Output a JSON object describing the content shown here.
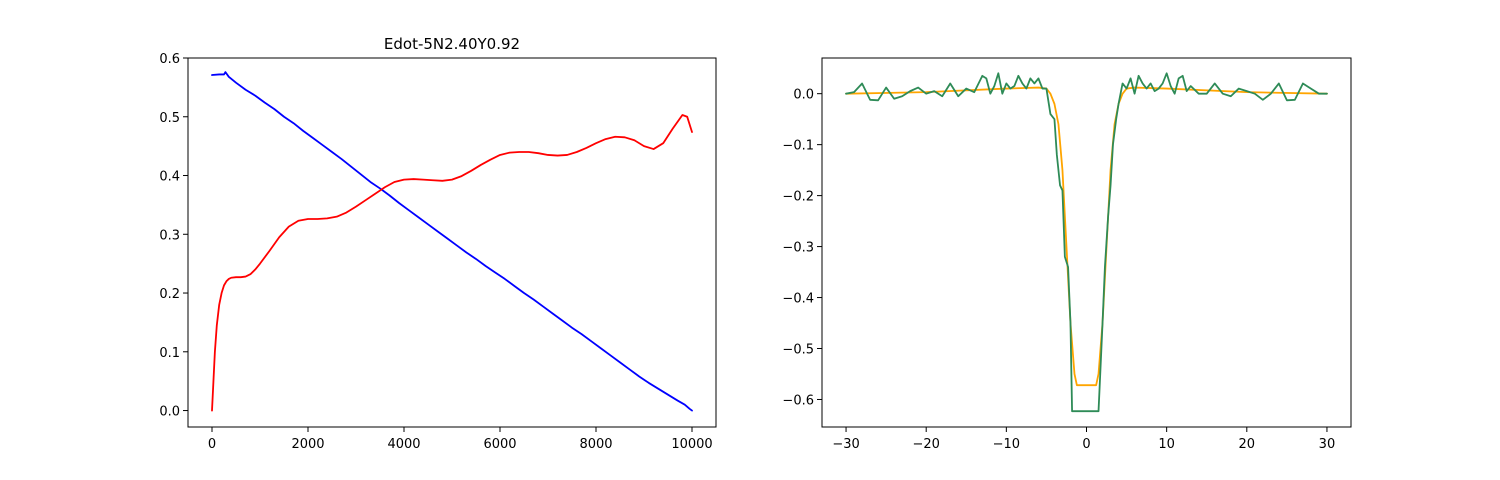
{
  "chart_data": [
    {
      "type": "line",
      "title": "Edot-5N2.40Y0.92",
      "xlabel": "",
      "ylabel": "",
      "xlim": [
        -500,
        10500
      ],
      "ylim": [
        -0.028,
        0.6
      ],
      "xticks": [
        0,
        2000,
        4000,
        6000,
        8000,
        10000
      ],
      "xtick_labels": [
        "0",
        "2000",
        "4000",
        "6000",
        "8000",
        "10000"
      ],
      "yticks": [
        0.0,
        0.1,
        0.2,
        0.3,
        0.4,
        0.5,
        0.6
      ],
      "ytick_labels": [
        "0.0",
        "0.1",
        "0.2",
        "0.3",
        "0.4",
        "0.5",
        "0.6"
      ],
      "grid": false,
      "series": [
        {
          "name": "blue",
          "color": "#0000ff",
          "x": [
            0,
            150,
            250,
            280,
            350,
            500,
            700,
            900,
            1100,
            1300,
            1500,
            1700,
            1900,
            2100,
            2300,
            2500,
            2700,
            2900,
            3100,
            3300,
            3500,
            3700,
            3900,
            4100,
            4300,
            4500,
            4700,
            4900,
            5100,
            5300,
            5500,
            5700,
            5900,
            6100,
            6300,
            6500,
            6700,
            6900,
            7100,
            7300,
            7500,
            7700,
            7900,
            8100,
            8300,
            8500,
            8700,
            8900,
            9100,
            9300,
            9500,
            9700,
            9850,
            9950,
            10000
          ],
          "y": [
            0.571,
            0.572,
            0.572,
            0.576,
            0.568,
            0.558,
            0.546,
            0.536,
            0.524,
            0.513,
            0.5,
            0.489,
            0.476,
            0.464,
            0.452,
            0.44,
            0.428,
            0.415,
            0.402,
            0.389,
            0.378,
            0.366,
            0.353,
            0.341,
            0.329,
            0.317,
            0.305,
            0.293,
            0.281,
            0.269,
            0.258,
            0.246,
            0.235,
            0.224,
            0.212,
            0.2,
            0.189,
            0.177,
            0.165,
            0.153,
            0.141,
            0.13,
            0.118,
            0.106,
            0.094,
            0.082,
            0.07,
            0.058,
            0.047,
            0.037,
            0.027,
            0.017,
            0.01,
            0.003,
            0.0
          ]
        },
        {
          "name": "red",
          "color": "#ff0000",
          "x": [
            0,
            30,
            60,
            100,
            150,
            200,
            250,
            300,
            350,
            400,
            500,
            600,
            700,
            800,
            900,
            1000,
            1200,
            1400,
            1600,
            1800,
            2000,
            2200,
            2400,
            2600,
            2800,
            3000,
            3200,
            3400,
            3600,
            3800,
            4000,
            4200,
            4400,
            4600,
            4800,
            5000,
            5200,
            5400,
            5600,
            5800,
            6000,
            6200,
            6400,
            6600,
            6800,
            7000,
            7200,
            7400,
            7600,
            7800,
            8000,
            8200,
            8400,
            8600,
            8800,
            9000,
            9200,
            9400,
            9600,
            9800,
            9900,
            10000
          ],
          "y": [
            0.0,
            0.05,
            0.1,
            0.145,
            0.18,
            0.2,
            0.213,
            0.22,
            0.224,
            0.226,
            0.227,
            0.227,
            0.228,
            0.232,
            0.24,
            0.25,
            0.272,
            0.295,
            0.313,
            0.323,
            0.326,
            0.326,
            0.327,
            0.33,
            0.337,
            0.347,
            0.358,
            0.369,
            0.38,
            0.389,
            0.393,
            0.394,
            0.393,
            0.392,
            0.391,
            0.393,
            0.399,
            0.408,
            0.418,
            0.427,
            0.435,
            0.439,
            0.44,
            0.44,
            0.438,
            0.435,
            0.434,
            0.435,
            0.44,
            0.447,
            0.455,
            0.462,
            0.466,
            0.465,
            0.46,
            0.45,
            0.445,
            0.455,
            0.48,
            0.503,
            0.5,
            0.474
          ]
        }
      ]
    },
    {
      "type": "line",
      "title": "",
      "xlabel": "",
      "ylabel": "",
      "xlim": [
        -33,
        33
      ],
      "ylim": [
        -0.654,
        0.07
      ],
      "xticks": [
        -30,
        -20,
        -10,
        0,
        10,
        20,
        30
      ],
      "xtick_labels": [
        "−30",
        "−20",
        "−10",
        "0",
        "10",
        "20",
        "30"
      ],
      "yticks": [
        0.0,
        -0.1,
        -0.2,
        -0.3,
        -0.4,
        -0.5,
        -0.6
      ],
      "ytick_labels": [
        "0.0",
        "−0.1",
        "−0.2",
        "−0.3",
        "−0.4",
        "−0.5",
        "−0.6"
      ],
      "grid": false,
      "series": [
        {
          "name": "orange",
          "color": "#ffa500",
          "x": [
            -30,
            -20,
            -10,
            -6,
            -5,
            -4.5,
            -4,
            -3.5,
            -3,
            -2.5,
            -2,
            -1.5,
            -1.2,
            1.2,
            1.5,
            2,
            2.5,
            3,
            3.5,
            4,
            4.5,
            5,
            6,
            10,
            20,
            30
          ],
          "y": [
            0.0,
            0.003,
            0.01,
            0.012,
            0.01,
            0.0,
            -0.02,
            -0.06,
            -0.15,
            -0.3,
            -0.45,
            -0.55,
            -0.572,
            -0.572,
            -0.55,
            -0.45,
            -0.3,
            -0.15,
            -0.06,
            -0.02,
            0.0,
            0.01,
            0.012,
            0.01,
            0.003,
            0.0
          ]
        },
        {
          "name": "green",
          "color": "#2e8b57",
          "x": [
            -30,
            -29,
            -28,
            -27,
            -26,
            -25,
            -24,
            -23,
            -22,
            -21,
            -20,
            -19,
            -18,
            -17,
            -16,
            -15,
            -14,
            -13,
            -12.5,
            -12,
            -11.5,
            -11,
            -10.5,
            -10,
            -9.5,
            -9,
            -8.5,
            -8,
            -7.5,
            -7,
            -6.5,
            -6,
            -5.5,
            -5,
            -4.5,
            -4,
            -3.7,
            -3.3,
            -3,
            -2.7,
            -2.3,
            -2,
            -1.8,
            -1.5,
            -1.2,
            1.2,
            1.5,
            1.8,
            2,
            2.3,
            2.7,
            3,
            3.3,
            3.7,
            4,
            4.5,
            5,
            5.5,
            6,
            6.5,
            7,
            7.5,
            8,
            8.5,
            9,
            9.5,
            10,
            10.5,
            11,
            11.5,
            12,
            12.5,
            13,
            14,
            15,
            16,
            17,
            18,
            19,
            20,
            21,
            22,
            23,
            24,
            25,
            26,
            27,
            28,
            29,
            30
          ],
          "y": [
            0.0,
            0.003,
            0.02,
            -0.012,
            -0.013,
            0.012,
            -0.01,
            -0.005,
            0.005,
            0.012,
            0.0,
            0.005,
            -0.005,
            0.02,
            -0.005,
            0.01,
            0.003,
            0.035,
            0.03,
            0.0,
            0.015,
            0.04,
            0.0,
            0.02,
            0.01,
            0.015,
            0.035,
            0.02,
            0.01,
            0.03,
            0.02,
            0.03,
            0.01,
            0.01,
            -0.04,
            -0.05,
            -0.12,
            -0.18,
            -0.19,
            -0.32,
            -0.34,
            -0.45,
            -0.623,
            -0.623,
            -0.623,
            -0.623,
            -0.623,
            -0.52,
            -0.45,
            -0.34,
            -0.24,
            -0.18,
            -0.1,
            -0.05,
            -0.02,
            0.02,
            0.01,
            0.03,
            0.0,
            0.035,
            0.02,
            0.01,
            0.02,
            0.005,
            0.01,
            0.02,
            0.04,
            0.015,
            0.0,
            0.03,
            0.035,
            0.005,
            0.015,
            0.0,
            0.0,
            0.02,
            0.0,
            -0.005,
            0.01,
            0.005,
            0.0,
            -0.012,
            0.0,
            0.02,
            -0.013,
            -0.012,
            0.02,
            0.01,
            0.0,
            0.0
          ]
        }
      ]
    }
  ]
}
